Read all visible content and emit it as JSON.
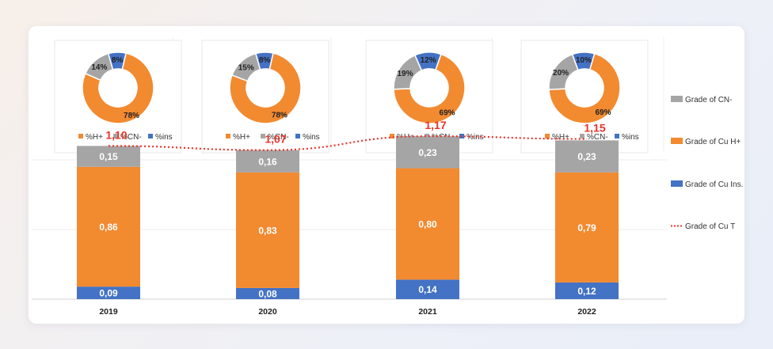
{
  "chart_data": {
    "type": "bar",
    "stacked": true,
    "categories": [
      "2019",
      "2020",
      "2021",
      "2022"
    ],
    "series": [
      {
        "name": "Grade of Cu Ins.",
        "color": "#4472c4",
        "values": [
          0.09,
          0.08,
          0.14,
          0.12
        ],
        "labels": [
          "0,09",
          "0,08",
          "0,14",
          "0,12"
        ]
      },
      {
        "name": "Grade of Cu H+",
        "color": "#f28a30",
        "values": [
          0.86,
          0.83,
          0.8,
          0.79
        ],
        "labels": [
          "0,86",
          "0,83",
          "0,80",
          "0,79"
        ]
      },
      {
        "name": "Grade of CN-",
        "color": "#a5a5a5",
        "values": [
          0.15,
          0.16,
          0.23,
          0.23
        ],
        "labels": [
          "0,15",
          "0,16",
          "0,23",
          "0,23"
        ]
      }
    ],
    "total_line": {
      "name": "Grade of Cu T",
      "color": "#e8352b",
      "values": [
        1.1,
        1.07,
        1.17,
        1.15
      ],
      "labels": [
        "1,10",
        "1,07",
        "1,17",
        "1,15"
      ]
    },
    "legend": [
      "Grade of CN-",
      "Grade of Cu H+",
      "Grade of Cu Ins.",
      "Grade of Cu T"
    ],
    "legend_position": "right",
    "ylim": [
      0,
      1.25
    ],
    "grid": true,
    "donuts": [
      {
        "year": "2019",
        "slices": [
          {
            "name": "%H+",
            "value": 78,
            "label": "78%"
          },
          {
            "name": "%CN-",
            "value": 14,
            "label": "14%"
          },
          {
            "name": "%ins",
            "value": 8,
            "label": "8%"
          }
        ]
      },
      {
        "year": "2020",
        "slices": [
          {
            "name": "%H+",
            "value": 78,
            "label": "78%"
          },
          {
            "name": "%CN-",
            "value": 15,
            "label": "15%"
          },
          {
            "name": "%ins",
            "value": 8,
            "label": "8%"
          }
        ]
      },
      {
        "year": "2021",
        "slices": [
          {
            "name": "%H+",
            "value": 69,
            "label": "69%"
          },
          {
            "name": "%CN-",
            "value": 19,
            "label": "19%"
          },
          {
            "name": "%ins",
            "value": 12,
            "label": "12%"
          }
        ]
      },
      {
        "year": "2022",
        "slices": [
          {
            "name": "%H+",
            "value": 69,
            "label": "69%"
          },
          {
            "name": "%CN-",
            "value": 20,
            "label": "20%"
          },
          {
            "name": "%ins",
            "value": 10,
            "label": "10%"
          }
        ]
      }
    ],
    "donut_legend": [
      "%H+",
      "%CN-",
      "%ins"
    ],
    "donut_colors": [
      "#f28a30",
      "#a5a5a5",
      "#4472c4"
    ]
  }
}
